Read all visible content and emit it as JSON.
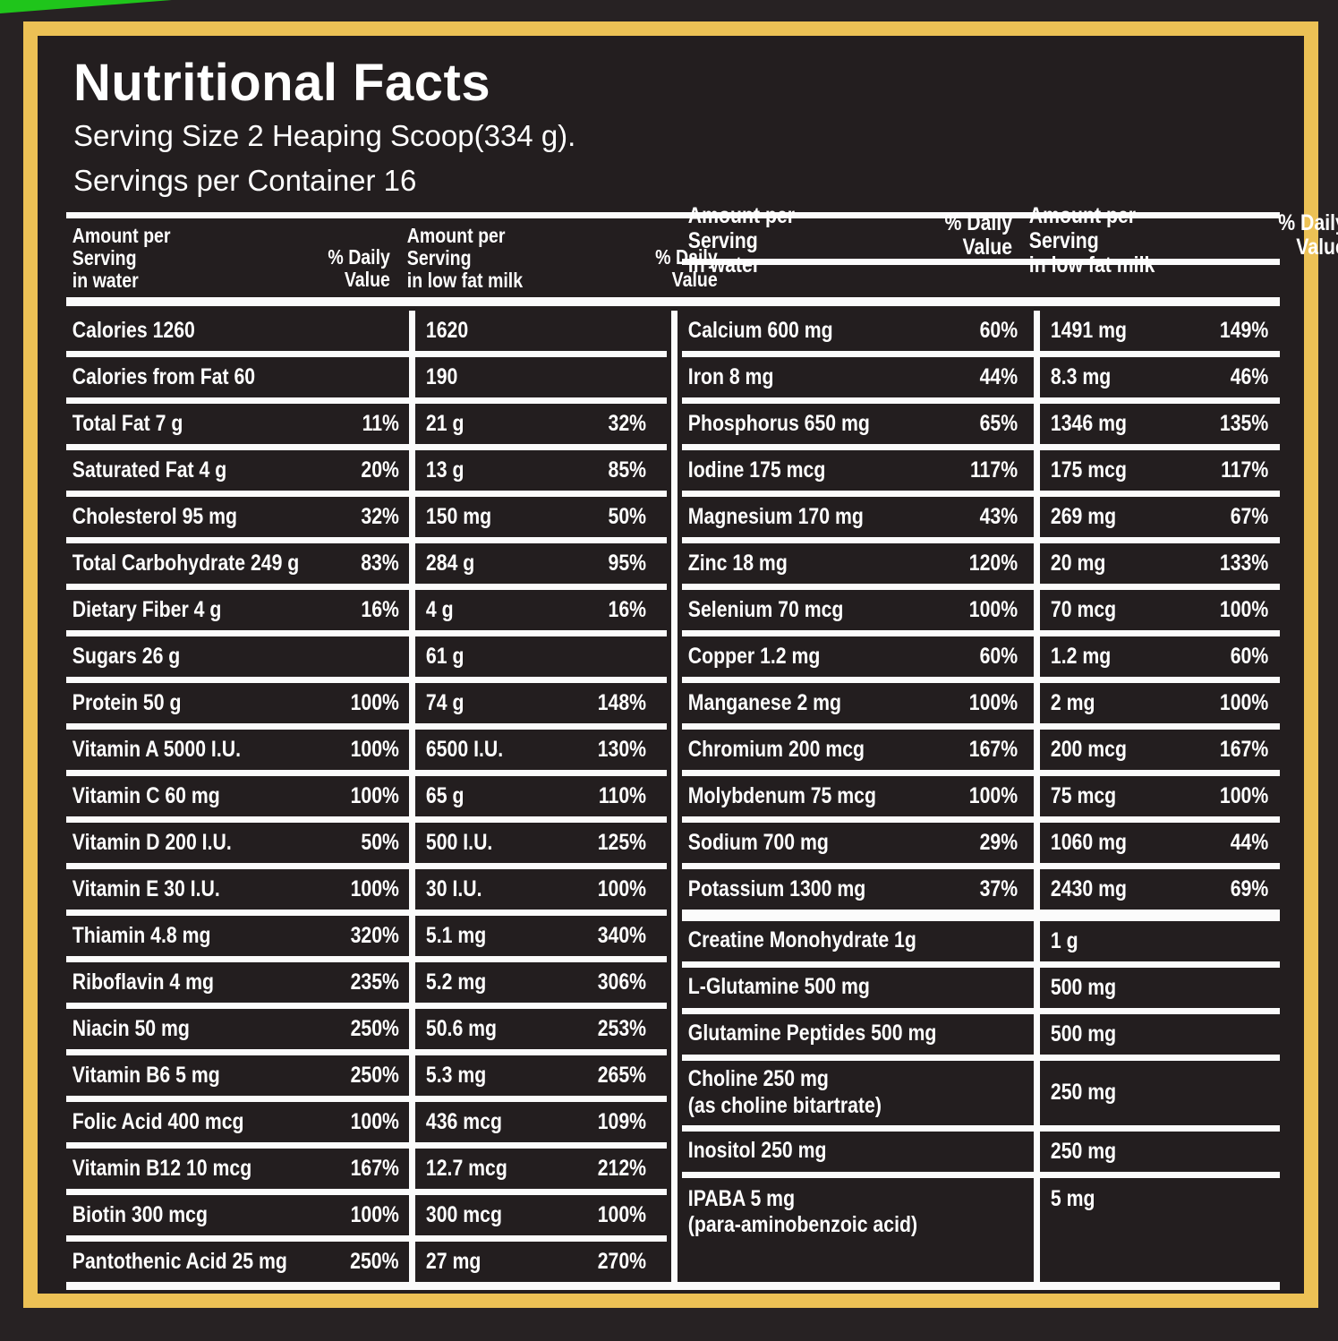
{
  "title": "Nutritional Facts",
  "serving_size_line": "Serving Size 2 Heaping Scoop(334 g).",
  "servings_line": "Servings per Container 16",
  "colors": {
    "accent_green": "#1fc51b",
    "border_yellow": "#ecc155",
    "panel_bg": "#231e1f",
    "outer_bg": "#272223",
    "rule_white": "#fbfbfb",
    "text_white": "#ffffff"
  },
  "header": {
    "amount_line1": "Amount per",
    "amount_line2": "Serving",
    "water_line3": "in water",
    "milk_line3": "in low fat milk",
    "dv_line1": "% Daily",
    "dv_line2": "Value"
  },
  "left_table": {
    "rows": [
      {
        "label": "Calories 1260",
        "water_dv": "",
        "milk": "1620",
        "milk_dv": ""
      },
      {
        "label": "Calories from Fat 60",
        "water_dv": "",
        "milk": "190",
        "milk_dv": ""
      },
      {
        "label": "Total Fat 7 g",
        "water_dv": "11%",
        "milk": "21 g",
        "milk_dv": "32%"
      },
      {
        "label": "Saturated Fat 4 g",
        "water_dv": "20%",
        "milk": "13 g",
        "milk_dv": "85%"
      },
      {
        "label": "Cholesterol 95 mg",
        "water_dv": "32%",
        "milk": "150 mg",
        "milk_dv": "50%"
      },
      {
        "label": "Total Carbohydrate 249 g",
        "water_dv": "83%",
        "milk": "284 g",
        "milk_dv": "95%"
      },
      {
        "label": "Dietary Fiber 4 g",
        "water_dv": "16%",
        "milk": "4 g",
        "milk_dv": "16%"
      },
      {
        "label": "Sugars 26 g",
        "water_dv": "",
        "milk": "61 g",
        "milk_dv": ""
      },
      {
        "label": "Protein 50 g",
        "water_dv": "100%",
        "milk": "74 g",
        "milk_dv": "148%"
      },
      {
        "label": "Vitamin A 5000 I.U.",
        "water_dv": "100%",
        "milk": "6500 I.U.",
        "milk_dv": "130%"
      },
      {
        "label": "Vitamin C 60 mg",
        "water_dv": "100%",
        "milk": "65 g",
        "milk_dv": "110%"
      },
      {
        "label": "Vitamin D 200 I.U.",
        "water_dv": "50%",
        "milk": "500 I.U.",
        "milk_dv": "125%"
      },
      {
        "label": "Vitamin E 30 I.U.",
        "water_dv": "100%",
        "milk": "30 I.U.",
        "milk_dv": "100%"
      },
      {
        "label": "Thiamin 4.8 mg",
        "water_dv": "320%",
        "milk": "5.1 mg",
        "milk_dv": "340%"
      },
      {
        "label": "Riboflavin 4 mg",
        "water_dv": "235%",
        "milk": "5.2 mg",
        "milk_dv": "306%"
      },
      {
        "label": "Niacin 50 mg",
        "water_dv": "250%",
        "milk": "50.6 mg",
        "milk_dv": "253%"
      },
      {
        "label": "Vitamin B6 5 mg",
        "water_dv": "250%",
        "milk": "5.3 mg",
        "milk_dv": "265%"
      },
      {
        "label": "Folic Acid 400 mcg",
        "water_dv": "100%",
        "milk": "436 mcg",
        "milk_dv": "109%"
      },
      {
        "label": "Vitamin B12 10 mcg",
        "water_dv": "167%",
        "milk": "12.7 mcg",
        "milk_dv": "212%"
      },
      {
        "label": "Biotin 300 mcg",
        "water_dv": "100%",
        "milk": "300 mcg",
        "milk_dv": "100%"
      },
      {
        "label": "Pantothenic Acid 25 mg",
        "water_dv": "250%",
        "milk": "27 mg",
        "milk_dv": "270%"
      }
    ]
  },
  "right_table": {
    "rows": [
      {
        "label": "Calcium 600 mg",
        "water_dv": "60%",
        "milk": "1491 mg",
        "milk_dv": "149%"
      },
      {
        "label": "Iron 8 mg",
        "water_dv": "44%",
        "milk": "8.3 mg",
        "milk_dv": "46%"
      },
      {
        "label": "Phosphorus 650 mg",
        "water_dv": "65%",
        "milk": "1346 mg",
        "milk_dv": "135%"
      },
      {
        "label": "Iodine 175 mcg",
        "water_dv": "117%",
        "milk": "175 mcg",
        "milk_dv": "117%"
      },
      {
        "label": "Magnesium 170 mg",
        "water_dv": "43%",
        "milk": "269 mg",
        "milk_dv": "67%"
      },
      {
        "label": "Zinc 18 mg",
        "water_dv": "120%",
        "milk": "20 mg",
        "milk_dv": "133%"
      },
      {
        "label": "Selenium 70 mcg",
        "water_dv": "100%",
        "milk": "70 mcg",
        "milk_dv": "100%"
      },
      {
        "label": "Copper 1.2 mg",
        "water_dv": "60%",
        "milk": "1.2 mg",
        "milk_dv": "60%"
      },
      {
        "label": "Manganese 2 mg",
        "water_dv": "100%",
        "milk": "2 mg",
        "milk_dv": "100%"
      },
      {
        "label": "Chromium 200 mcg",
        "water_dv": "167%",
        "milk": "200 mcg",
        "milk_dv": "167%"
      },
      {
        "label": "Molybdenum 75 mcg",
        "water_dv": "100%",
        "milk": "75 mcg",
        "milk_dv": "100%"
      },
      {
        "label": "Sodium 700 mg",
        "water_dv": "29%",
        "milk": "1060 mg",
        "milk_dv": "44%"
      },
      {
        "label": "Potassium 1300 mg",
        "water_dv": "37%",
        "milk": "2430 mg",
        "milk_dv": "69%"
      }
    ],
    "supplements": [
      {
        "label": "Creatine Monohydrate 1g",
        "sub": "",
        "milk": "1 g"
      },
      {
        "label": "L-Glutamine 500 mg",
        "sub": "",
        "milk": "500 mg"
      },
      {
        "label": "Glutamine Peptides 500 mg",
        "sub": "",
        "milk": "500 mg"
      },
      {
        "label": "Choline 250 mg",
        "sub": "(as choline bitartrate)",
        "milk": "250 mg"
      },
      {
        "label": "Inositol 250 mg",
        "sub": "",
        "milk": "250 mg"
      },
      {
        "label": "IPABA 5 mg",
        "sub": "(para-aminobenzoic acid)",
        "milk": "5 mg"
      }
    ]
  }
}
